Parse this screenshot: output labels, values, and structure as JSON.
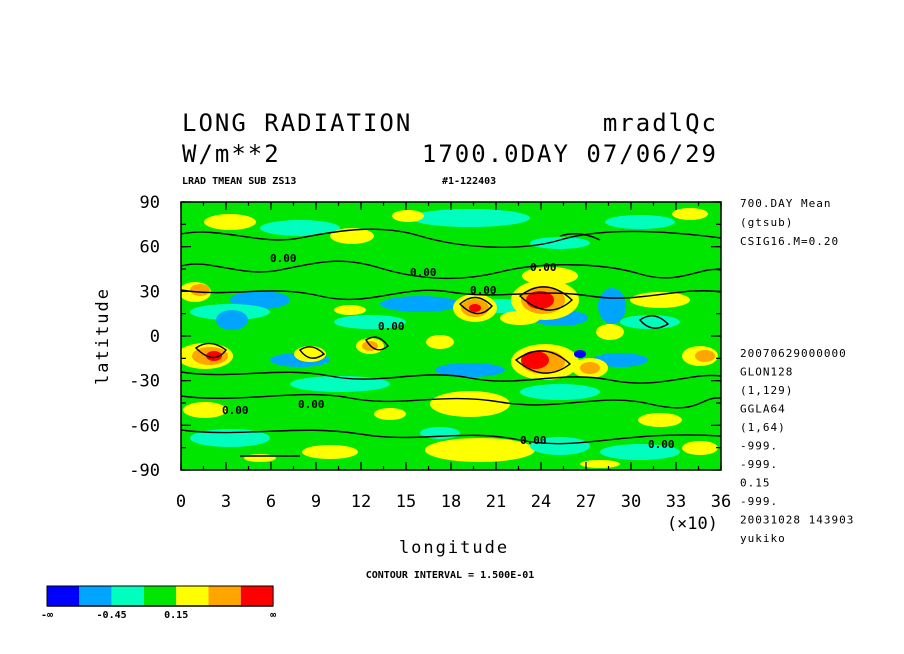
{
  "header": {
    "title_left": "LONG RADIATION",
    "title_right": "mradlQc",
    "units": "W/m**2",
    "time": "1700.0DAY 07/06/29",
    "sub_left": "LRAD TMEAN SUB ZS13",
    "sub_right": "#1-122403"
  },
  "side_info": {
    "top": [
      "700.DAY Mean",
      "(gtsub)",
      "CSIG16.M=0.20"
    ],
    "bottom": [
      "20070629000000",
      "GLON128",
      "(1,129)",
      "GGLA64",
      "(1,64)",
      "-999.",
      "-999.",
      "0.15",
      "-999.",
      "20031028 143903",
      "yukiko"
    ]
  },
  "colors": {
    "levels": [
      "#0000ff",
      "#00a5ff",
      "#00ffbe",
      "#00e600",
      "#ffff00",
      "#ffa500",
      "#ff0000"
    ]
  },
  "colorbar": {
    "labels": [
      "-∞",
      "-0.45",
      "0.15",
      "∞"
    ]
  },
  "contour_interval": "CONTOUR INTERVAL = 1.500E-01",
  "contour_labels": [
    "0.00",
    "0.00",
    "0.00",
    "0.00",
    "0.00",
    "0.00",
    "0.00",
    "0.00",
    "0.00"
  ],
  "chart_data": {
    "type": "heatmap",
    "title": "LONG RADIATION",
    "xlabel": "longitude",
    "ylabel": "latitude",
    "xlim": [
      0,
      36
    ],
    "ylim": [
      -90,
      90
    ],
    "x_multiplier_label": "(×10)",
    "x_ticks": [
      "0",
      "3",
      "6",
      "9",
      "12",
      "15",
      "18",
      "21",
      "24",
      "27",
      "30",
      "33",
      "36"
    ],
    "y_ticks": [
      "90",
      "60",
      "30",
      "0",
      "-30",
      "-60",
      "-90"
    ],
    "x_tick_values": [
      0,
      3,
      6,
      9,
      12,
      15,
      18,
      21,
      24,
      27,
      30,
      33,
      36
    ],
    "y_tick_values": [
      90,
      60,
      30,
      0,
      -30,
      -60,
      -90
    ],
    "levels": [
      -0.45,
      -0.3,
      -0.15,
      0.15,
      0.3,
      0.45
    ],
    "features": [
      {
        "lon": 225,
        "lat": 25,
        "value": 0.9
      },
      {
        "lon": 235,
        "lat": -15,
        "value": 0.8
      },
      {
        "lon": 40,
        "lat": 10,
        "value": -0.6
      },
      {
        "lon": 285,
        "lat": 20,
        "value": -0.6
      },
      {
        "lon": 25,
        "lat": -15,
        "value": 0.4
      },
      {
        "lon": 320,
        "lat": -65,
        "value": 0.3
      }
    ]
  }
}
